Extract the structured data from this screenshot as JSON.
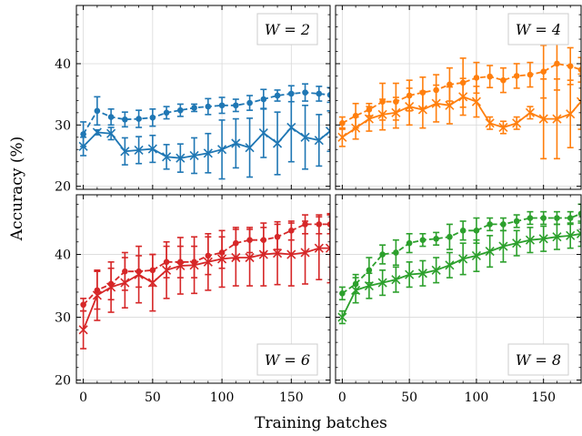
{
  "figure": {
    "xlabel": "Training batches",
    "ylabel": "Accuracy (%)"
  },
  "colors": {
    "W2": "#1f77b4",
    "W4": "#ff7f0e",
    "W6": "#d62728",
    "W8": "#2ca02c",
    "grid": "#d9d9d9"
  },
  "chart_data": [
    {
      "type": "line",
      "panel": "top-left",
      "legend": "W = 2",
      "legend_position": "top-right",
      "xlim": [
        -5,
        178
      ],
      "ylim": [
        19.5,
        49.5
      ],
      "x_ticks": [
        0,
        50,
        100,
        150
      ],
      "y_ticks": [
        20,
        30,
        40
      ],
      "grid": true,
      "series": [
        {
          "style": "dashed-dot",
          "x": [
            0,
            10,
            20,
            30,
            40,
            50,
            60,
            70,
            80,
            90,
            100,
            110,
            120,
            130,
            140,
            150,
            160,
            170,
            178
          ],
          "y": [
            28.5,
            32.3,
            31.3,
            30.9,
            31.0,
            31.2,
            32.0,
            32.4,
            32.8,
            33.0,
            33.2,
            33.2,
            33.6,
            34.2,
            34.8,
            35.1,
            35.3,
            35.1,
            34.9
          ],
          "err": [
            2.0,
            2.3,
            1.3,
            1.2,
            1.4,
            1.4,
            1.0,
            1.0,
            0.6,
            1.3,
            1.3,
            1.0,
            1.2,
            1.6,
            0.9,
            1.3,
            1.4,
            1.2,
            1.2
          ]
        },
        {
          "style": "solid-x",
          "x": [
            0,
            10,
            20,
            30,
            40,
            50,
            60,
            70,
            80,
            90,
            100,
            110,
            120,
            130,
            140,
            150,
            160,
            170,
            178
          ],
          "y": [
            26.5,
            28.8,
            28.6,
            25.7,
            25.9,
            26.1,
            24.8,
            24.6,
            25.0,
            25.4,
            26.0,
            27.0,
            26.3,
            28.7,
            27.0,
            29.6,
            28.0,
            27.5,
            29.0
          ],
          "err": [
            1.5,
            0.4,
            1.0,
            2.2,
            2.2,
            2.2,
            2.0,
            2.3,
            2.9,
            3.2,
            4.8,
            4.0,
            4.8,
            4.0,
            5.1,
            5.6,
            5.2,
            4.2,
            3.3
          ]
        }
      ]
    },
    {
      "type": "line",
      "panel": "top-right",
      "legend": "W = 4",
      "legend_position": "top-right",
      "xlim": [
        -5,
        178
      ],
      "ylim": [
        19.5,
        49.5
      ],
      "x_ticks": [
        0,
        50,
        100,
        150
      ],
      "y_ticks": [
        20,
        30,
        40
      ],
      "grid": true,
      "series": [
        {
          "style": "dashed-dot",
          "x": [
            0,
            10,
            20,
            30,
            40,
            50,
            60,
            70,
            80,
            90,
            100,
            110,
            120,
            130,
            140,
            150,
            160,
            170,
            178
          ],
          "y": [
            30.3,
            31.5,
            32.5,
            33.8,
            33.8,
            34.8,
            35.3,
            35.7,
            36.6,
            36.9,
            37.7,
            37.9,
            37.3,
            38.0,
            38.2,
            38.7,
            40.0,
            39.6,
            39.0
          ],
          "err": [
            1.0,
            2.0,
            1.0,
            3.0,
            3.0,
            2.5,
            2.5,
            2.5,
            2.7,
            4.0,
            2.5,
            1.8,
            2.0,
            2.0,
            2.0,
            4.3,
            4.3,
            3.0,
            2.0
          ]
        },
        {
          "style": "solid-x",
          "x": [
            0,
            10,
            20,
            30,
            40,
            50,
            60,
            70,
            80,
            90,
            100,
            110,
            120,
            130,
            140,
            150,
            160,
            170,
            178
          ],
          "y": [
            28.0,
            29.5,
            31.0,
            31.7,
            32.0,
            33.0,
            32.5,
            33.5,
            33.2,
            34.6,
            33.8,
            30.3,
            29.6,
            30.3,
            32.0,
            31.0,
            31.0,
            31.8,
            33.8
          ],
          "err": [
            1.5,
            1.8,
            2.0,
            2.5,
            2.5,
            3.0,
            3.0,
            3.0,
            3.0,
            3.0,
            2.5,
            1.0,
            1.0,
            1.0,
            1.0,
            6.5,
            6.5,
            5.5,
            4.5
          ]
        }
      ]
    },
    {
      "type": "line",
      "panel": "bottom-left",
      "legend": "W = 6",
      "legend_position": "bottom-right",
      "xlim": [
        -5,
        178
      ],
      "ylim": [
        19.5,
        49.5
      ],
      "x_ticks": [
        0,
        50,
        100,
        150
      ],
      "y_ticks": [
        20,
        30,
        40
      ],
      "grid": true,
      "series": [
        {
          "style": "dashed-dot",
          "x": [
            0,
            10,
            20,
            30,
            40,
            50,
            60,
            70,
            80,
            90,
            100,
            110,
            120,
            130,
            140,
            150,
            160,
            170,
            178
          ],
          "y": [
            32.0,
            34.3,
            35.3,
            37.3,
            37.3,
            37.5,
            38.8,
            38.8,
            38.8,
            39.8,
            40.3,
            41.8,
            42.3,
            42.3,
            42.8,
            43.8,
            44.8,
            44.8,
            44.8
          ],
          "err": [
            1.0,
            3.0,
            2.5,
            3.0,
            2.5,
            2.5,
            2.5,
            2.5,
            2.5,
            3.0,
            2.5,
            2.5,
            2.0,
            2.0,
            2.0,
            1.5,
            1.5,
            1.5,
            1.5
          ]
        },
        {
          "style": "solid-x",
          "x": [
            0,
            10,
            20,
            30,
            40,
            50,
            60,
            70,
            80,
            90,
            100,
            110,
            120,
            130,
            140,
            150,
            160,
            170,
            178
          ],
          "y": [
            28.0,
            33.5,
            34.8,
            35.5,
            36.8,
            35.5,
            37.5,
            38.2,
            38.3,
            38.8,
            39.3,
            39.5,
            39.5,
            40.0,
            40.2,
            40.0,
            40.3,
            41.0,
            41.0
          ],
          "err": [
            3.0,
            4.0,
            4.0,
            4.0,
            4.5,
            4.5,
            4.5,
            4.5,
            4.5,
            4.5,
            4.5,
            4.5,
            4.5,
            5.0,
            5.0,
            5.0,
            5.0,
            5.0,
            5.5
          ]
        }
      ]
    },
    {
      "type": "line",
      "panel": "bottom-right",
      "legend": "W = 8",
      "legend_position": "bottom-right",
      "xlim": [
        -5,
        178
      ],
      "ylim": [
        19.5,
        49.5
      ],
      "x_ticks": [
        0,
        50,
        100,
        150
      ],
      "y_ticks": [
        20,
        30,
        40
      ],
      "grid": true,
      "series": [
        {
          "style": "dashed-dot",
          "x": [
            0,
            10,
            20,
            30,
            40,
            50,
            60,
            70,
            80,
            90,
            100,
            110,
            120,
            130,
            140,
            150,
            160,
            170,
            178
          ],
          "y": [
            33.8,
            35.3,
            37.5,
            40.0,
            40.3,
            41.8,
            42.3,
            42.5,
            42.8,
            43.8,
            43.8,
            44.8,
            44.8,
            45.3,
            45.8,
            45.8,
            45.8,
            45.8,
            46.5
          ],
          "err": [
            1.0,
            1.5,
            2.0,
            1.5,
            2.0,
            1.5,
            1.0,
            1.0,
            2.0,
            1.5,
            2.0,
            1.0,
            1.0,
            1.0,
            1.0,
            1.0,
            1.0,
            1.0,
            1.5
          ]
        },
        {
          "style": "solid-x",
          "x": [
            0,
            10,
            20,
            30,
            40,
            50,
            60,
            70,
            80,
            90,
            100,
            110,
            120,
            130,
            140,
            150,
            160,
            170,
            178
          ],
          "y": [
            30.0,
            34.3,
            35.0,
            35.5,
            36.0,
            36.8,
            37.0,
            37.5,
            38.3,
            39.3,
            39.8,
            40.5,
            41.3,
            41.8,
            42.3,
            42.5,
            42.8,
            43.0,
            43.3
          ],
          "err": [
            1.0,
            2.0,
            2.0,
            2.0,
            2.0,
            2.0,
            2.0,
            2.0,
            2.0,
            2.5,
            2.5,
            2.5,
            2.5,
            2.0,
            2.0,
            2.0,
            2.0,
            2.0,
            2.0
          ]
        }
      ]
    }
  ]
}
